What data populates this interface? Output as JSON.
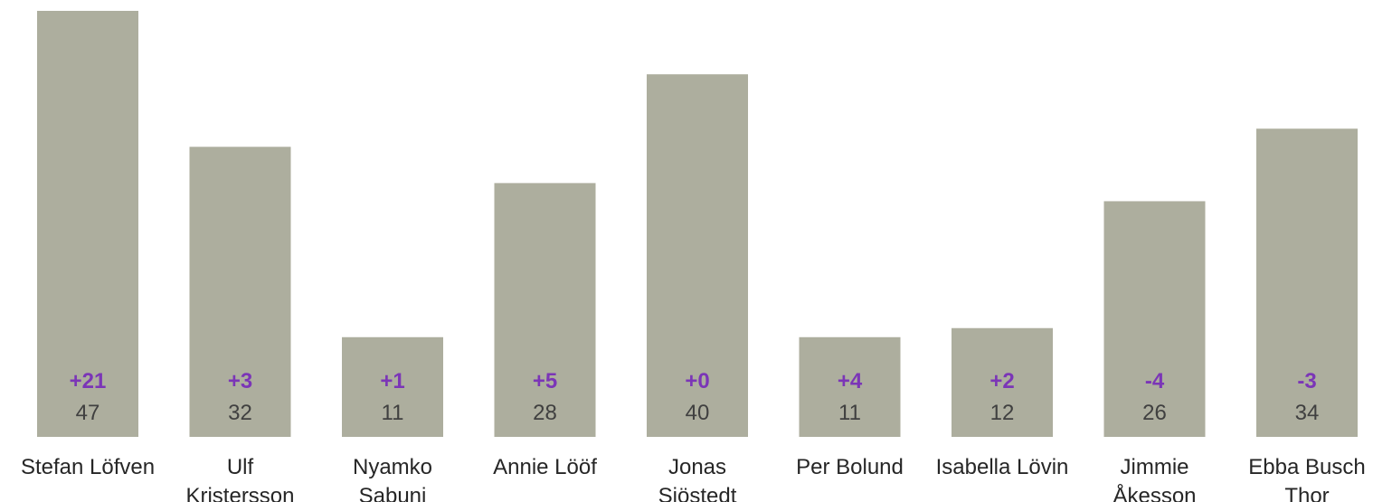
{
  "chart_data": {
    "type": "bar",
    "categories": [
      [
        "Stefan Löfven"
      ],
      [
        "Ulf",
        "Kristersson"
      ],
      [
        "Nyamko",
        "Sabuni"
      ],
      [
        "Annie Lööf"
      ],
      [
        "Jonas",
        "Sjöstedt"
      ],
      [
        "Per Bolund"
      ],
      [
        "Isabella Lövin"
      ],
      [
        "Jimmie",
        "Åkesson"
      ],
      [
        "Ebba Busch",
        "Thor"
      ]
    ],
    "values": [
      47,
      32,
      11,
      28,
      40,
      11,
      12,
      26,
      34
    ],
    "changes": [
      "+21",
      "+3",
      "+1",
      "+5",
      "+0",
      "+4",
      "+2",
      "-4",
      "-3"
    ],
    "ylim": [
      0,
      47
    ],
    "grid": false,
    "colors": {
      "bar": "#adae9e",
      "change": "#7b35b7",
      "value": "#404040",
      "category": "#262626"
    }
  }
}
